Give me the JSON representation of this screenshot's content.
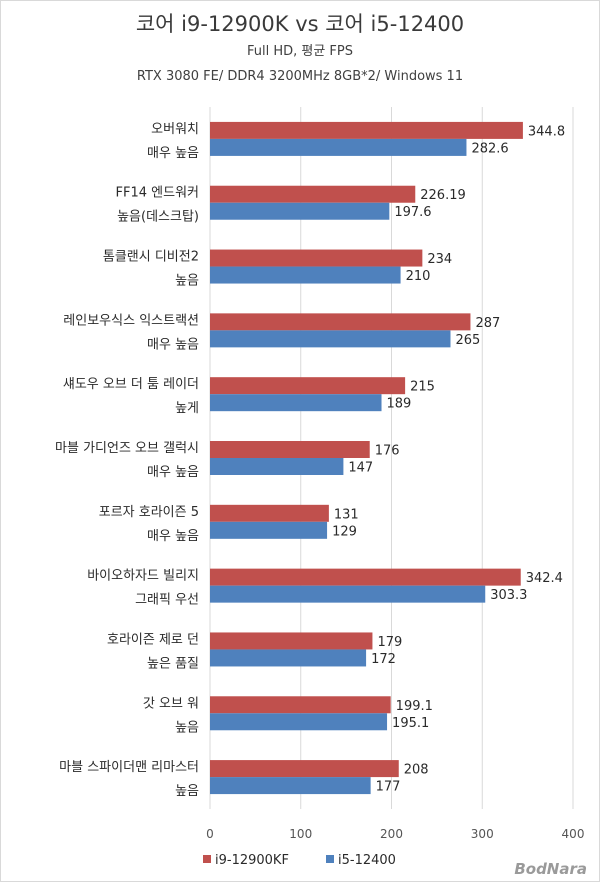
{
  "chart_data": {
    "type": "bar",
    "orientation": "horizontal",
    "title": "코어 i9-12900K vs 코어 i5-12400",
    "subtitle1": "Full HD, 평균 FPS",
    "subtitle2": "RTX 3080 FE/ DDR4 3200MHz 8GB*2/ Windows 11",
    "categories": [
      [
        "오버워치",
        "매우 높음"
      ],
      [
        "FF14 엔드워커",
        "높음(데스크탑)"
      ],
      [
        "톰클랜시 디비전2",
        "높음"
      ],
      [
        "레인보우식스 익스트랙션",
        "매우 높음"
      ],
      [
        "섀도우 오브 더 툼 레이더",
        "높게"
      ],
      [
        "마블 가디언즈 오브 갤럭시",
        "매우 높음"
      ],
      [
        "포르자 호라이즌 5",
        "매우 높음"
      ],
      [
        "바이오하자드 빌리지",
        "그래픽 우선"
      ],
      [
        "호라이즌 제로 던",
        "높은 품질"
      ],
      [
        "갓 오브 워",
        "높음"
      ],
      [
        "마블 스파이더맨 리마스터",
        "높음"
      ]
    ],
    "series": [
      {
        "name": "i9-12900KF",
        "color": "#c0504d",
        "values": [
          344.8,
          226.19,
          234,
          287,
          215,
          176,
          131,
          342.4,
          179,
          199.1,
          208
        ],
        "labels": [
          "344.8",
          "226.19",
          "234",
          "287",
          "215",
          "176",
          "131",
          "342.4",
          "179",
          "199.1",
          "208"
        ]
      },
      {
        "name": "i5-12400",
        "color": "#4f81bd",
        "values": [
          282.6,
          197.6,
          210,
          265,
          189,
          147,
          129,
          303.3,
          172,
          195.1,
          177
        ],
        "labels": [
          "282.6",
          "197.6",
          "210",
          "265",
          "189",
          "147",
          "129",
          "303.3",
          "172",
          "195.1",
          "177"
        ]
      }
    ],
    "xlim": [
      0,
      400
    ],
    "xticks": [
      0,
      100,
      200,
      300,
      400
    ],
    "grid": true,
    "legend": "bottom"
  },
  "watermark": "BodNara"
}
